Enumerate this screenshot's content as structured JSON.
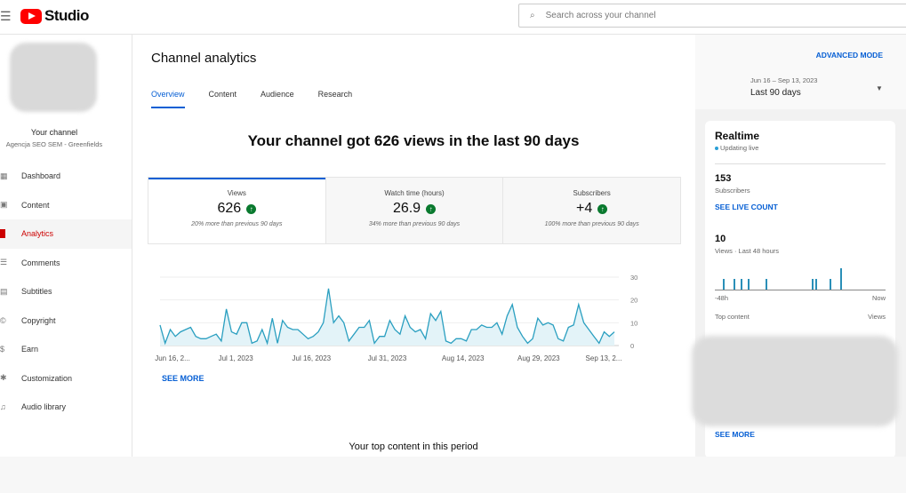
{
  "header": {
    "app_name": "Studio",
    "search_placeholder": "Search across your channel"
  },
  "sidebar": {
    "channel_title": "Your channel",
    "channel_name": "Agencja SEO SEM - Greenfields",
    "items": [
      {
        "label": "Dashboard",
        "icon": "dashboard-icon"
      },
      {
        "label": "Content",
        "icon": "content-icon"
      },
      {
        "label": "Analytics",
        "icon": "analytics-icon",
        "active": true
      },
      {
        "label": "Comments",
        "icon": "comments-icon"
      },
      {
        "label": "Subtitles",
        "icon": "subtitles-icon"
      },
      {
        "label": "Copyright",
        "icon": "copyright-icon"
      },
      {
        "label": "Earn",
        "icon": "earn-icon"
      },
      {
        "label": "Customization",
        "icon": "customization-icon"
      },
      {
        "label": "Audio library",
        "icon": "audio-library-icon"
      }
    ]
  },
  "main": {
    "title": "Channel analytics",
    "tabs": [
      "Overview",
      "Content",
      "Audience",
      "Research"
    ],
    "headline": "Your channel got 626 views in the last 90 days",
    "metrics": [
      {
        "label": "Views",
        "value": "626",
        "sub": "20% more than previous 90 days"
      },
      {
        "label": "Watch time (hours)",
        "value": "26.9",
        "sub": "34% more than previous 90 days"
      },
      {
        "label": "Subscribers",
        "value": "+4",
        "sub": "100% more than previous 90 days"
      }
    ],
    "see_more": "SEE MORE",
    "top_content": "Your top content in this period"
  },
  "chart_data": {
    "type": "area",
    "title": "Views",
    "x_ticks": [
      "Jun 16, 2...",
      "Jul 1, 2023",
      "Jul 16, 2023",
      "Jul 31, 2023",
      "Aug 14, 2023",
      "Aug 29, 2023",
      "Sep 13, 2..."
    ],
    "y_ticks": [
      "0",
      "10",
      "20",
      "30"
    ],
    "ylim": [
      0,
      30
    ],
    "grid": true,
    "color": "#2a9fc0",
    "values": [
      9,
      1,
      7,
      4,
      6,
      7,
      8,
      4,
      3,
      3,
      4,
      5,
      2,
      16,
      6,
      5,
      10,
      10,
      1,
      2,
      7,
      1,
      12,
      1,
      11,
      8,
      7,
      7,
      5,
      3,
      4,
      6,
      10,
      25,
      10,
      13,
      10,
      2,
      5,
      8,
      8,
      11,
      1,
      4,
      4,
      11,
      7,
      5,
      13,
      8,
      6,
      7,
      3,
      14,
      11,
      15,
      2,
      1,
      3,
      3,
      2,
      7,
      7,
      9,
      8,
      8,
      10,
      5,
      13,
      18,
      8,
      4,
      1,
      3,
      12,
      9,
      10,
      9,
      3,
      2,
      8,
      9,
      18,
      10,
      7,
      4,
      1,
      6,
      4,
      6
    ]
  },
  "right": {
    "advanced_mode": "ADVANCED MODE",
    "date_range": "Jun 16 – Sep 13, 2023",
    "period": "Last 90 days",
    "realtime": {
      "title": "Realtime",
      "status": "Updating live",
      "subs_value": "153",
      "subs_label": "Subscribers",
      "live_count": "SEE LIVE COUNT",
      "views_value": "10",
      "views_label": "Views · Last 48 hours",
      "axis_start": "-48h",
      "axis_end": "Now",
      "top_content": "Top content",
      "views_col": "Views",
      "hourly_views": [
        0,
        0,
        1,
        0,
        0,
        1,
        0,
        1,
        0,
        1,
        0,
        0,
        0,
        0,
        1,
        0,
        0,
        0,
        0,
        0,
        0,
        0,
        0,
        0,
        0,
        0,
        0,
        1,
        1,
        0,
        0,
        0,
        1,
        0,
        0,
        2,
        0,
        0,
        0,
        0,
        0,
        0,
        0,
        0,
        0,
        0,
        0,
        0
      ]
    },
    "see_more": "SEE MORE"
  }
}
